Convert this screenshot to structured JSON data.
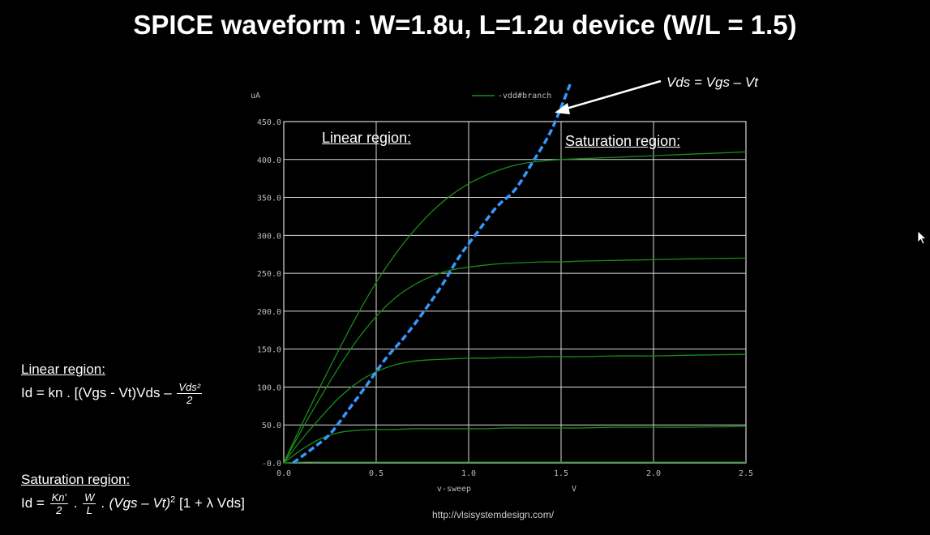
{
  "title": "SPICE waveform : W=1.8u, L=1.2u device (W/L = 1.5)",
  "url": "http://vlsisystemdesign.com/",
  "annotation": "Vds = Vgs – Vt",
  "plot_labels": {
    "linear": "Linear region:",
    "saturation": "Saturation region:"
  },
  "formulas": {
    "linear": {
      "header": "Linear region:",
      "prefix": "Id = kn . [(Vgs - Vt)Vds –",
      "frac_num": "Vds²",
      "frac_den": "2"
    },
    "saturation": {
      "header": "Saturation region:",
      "prefix": "Id =",
      "f1_num": "Kn′",
      "f1_den": "2",
      "dot1": ".",
      "f2_num": "W",
      "f2_den": "L",
      "suffix_italic": ". (Vgs – Vt)",
      "power": "2",
      "suffix": "[1 + λ Vds]"
    }
  },
  "colors": {
    "curve": "#1a8c1a",
    "locus": "#3399ff",
    "grid": "#d8d8d8",
    "axis_text": "#bbbbbb"
  },
  "chart_data": {
    "type": "line",
    "xlabel": "v-sweep",
    "xunit": "V",
    "yunit": "uA",
    "xlim": [
      0,
      2.5
    ],
    "ylim": [
      0,
      450
    ],
    "x_ticks": [
      "0.0",
      "0.5",
      "1.0",
      "1.5",
      "2.0",
      "2.5"
    ],
    "y_ticks": [
      "-0.0",
      "50.0",
      "100.0",
      "150.0",
      "200.0",
      "250.0",
      "300.0",
      "350.0",
      "400.0",
      "450.0"
    ],
    "legend": "-vdd#branch",
    "grid": true,
    "x": [
      0,
      0.1,
      0.2,
      0.3,
      0.4,
      0.5,
      0.6,
      0.7,
      0.8,
      0.9,
      1.0,
      1.1,
      1.2,
      1.3,
      1.4,
      1.5,
      1.6,
      1.8,
      2.0,
      2.2,
      2.5
    ],
    "series": [
      {
        "values": [
          0,
          1,
          1,
          1,
          1,
          1,
          1,
          1,
          1,
          1,
          1,
          1,
          1,
          1,
          1,
          1,
          1,
          1,
          1,
          1,
          1
        ]
      },
      {
        "values": [
          0,
          18,
          32,
          40,
          43,
          44,
          44,
          45,
          45,
          45,
          45,
          45,
          46,
          46,
          46,
          46,
          46,
          47,
          47,
          47,
          48
        ]
      },
      {
        "values": [
          0,
          32,
          60,
          86,
          106,
          120,
          129,
          134,
          136,
          137,
          138,
          138,
          139,
          139,
          140,
          140,
          140,
          141,
          141,
          142,
          143
        ]
      },
      {
        "values": [
          0,
          45,
          87,
          127,
          163,
          193,
          217,
          234,
          246,
          254,
          258,
          261,
          263,
          264,
          265,
          265,
          266,
          267,
          268,
          269,
          270
        ]
      },
      {
        "values": [
          0,
          52,
          102,
          150,
          196,
          238,
          274,
          305,
          331,
          352,
          368,
          380,
          389,
          395,
          398,
          400,
          401,
          403,
          405,
          407,
          410
        ]
      }
    ],
    "locus": {
      "x": [
        0.05,
        0.15,
        0.25,
        0.35,
        0.45,
        0.55,
        0.65,
        0.75,
        0.85,
        0.95,
        1.05,
        1.15,
        1.25,
        1.35,
        1.45,
        1.55
      ],
      "y": [
        0,
        18,
        38,
        70,
        103,
        137,
        165,
        197,
        232,
        272,
        305,
        337,
        360,
        398,
        440,
        500
      ]
    }
  }
}
